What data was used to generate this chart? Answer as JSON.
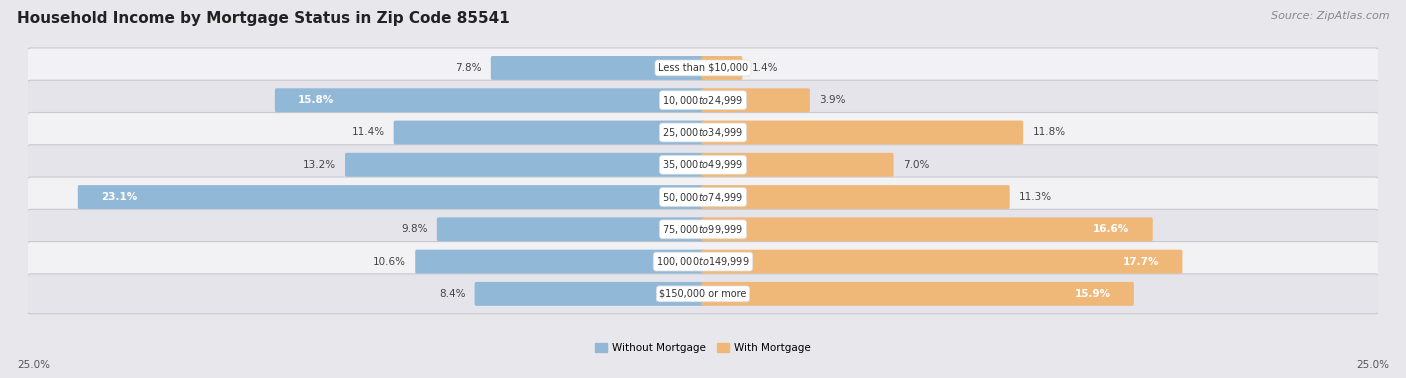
{
  "title": "Household Income by Mortgage Status in Zip Code 85541",
  "source": "Source: ZipAtlas.com",
  "categories": [
    "Less than $10,000",
    "$10,000 to $24,999",
    "$25,000 to $34,999",
    "$35,000 to $49,999",
    "$50,000 to $74,999",
    "$75,000 to $99,999",
    "$100,000 to $149,999",
    "$150,000 or more"
  ],
  "without_mortgage": [
    7.8,
    15.8,
    11.4,
    13.2,
    23.1,
    9.8,
    10.6,
    8.4
  ],
  "with_mortgage": [
    1.4,
    3.9,
    11.8,
    7.0,
    11.3,
    16.6,
    17.7,
    15.9
  ],
  "without_mortgage_color": "#92b8d8",
  "with_mortgage_color": "#f0b878",
  "axis_max": 25.0,
  "background_color": "#e8e8ec",
  "row_colors": [
    "#f2f2f5",
    "#e4e4ea"
  ],
  "legend_labels": [
    "Without Mortgage",
    "With Mortgage"
  ],
  "axis_label_left": "25.0%",
  "axis_label_right": "25.0%",
  "title_fontsize": 11,
  "source_fontsize": 8,
  "label_fontsize": 7.5,
  "cat_fontsize": 7.0,
  "pct_fontsize": 7.5
}
